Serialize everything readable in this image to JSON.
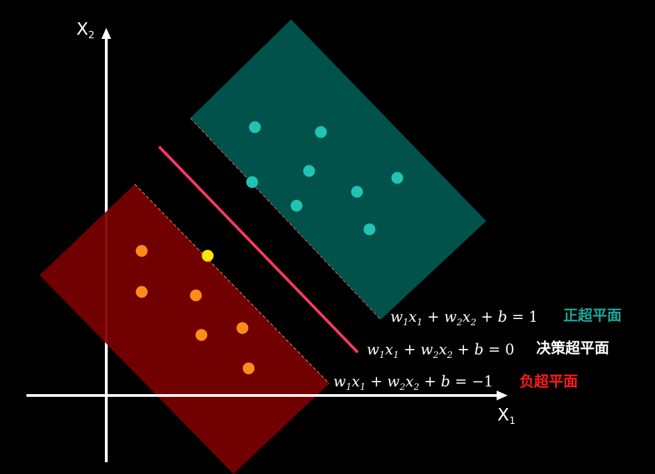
{
  "axes": {
    "x_label": "X",
    "x_sub": "1",
    "y_label": "X",
    "y_sub": "2"
  },
  "hyperplanes": {
    "positive": {
      "equation": [
        "w",
        "1",
        "x",
        "1",
        " + ",
        "w",
        "2",
        "x",
        "2",
        " + ",
        "b",
        " = 1"
      ],
      "label": "正超平面",
      "label_color": "#1aa89a",
      "region_color": "#00524a"
    },
    "decision": {
      "equation": [
        "w",
        "1",
        "x",
        "1",
        " + ",
        "w",
        "2",
        "x",
        "2",
        " + ",
        "b",
        " = 0"
      ],
      "label": "决策超平面",
      "label_color": "#ffffff",
      "line_color": "#ff3860"
    },
    "negative": {
      "equation": [
        "w",
        "1",
        "x",
        "1",
        " + ",
        "w",
        "2",
        "x",
        "2",
        " + ",
        "b",
        " = −1"
      ],
      "label": "负超平面",
      "label_color": "#ff1a1a",
      "region_color": "#7a0000"
    }
  },
  "points": {
    "positive_color": "#1fc4b4",
    "negative_color": "#ff8c1a",
    "highlight_color": "#ffe600"
  }
}
